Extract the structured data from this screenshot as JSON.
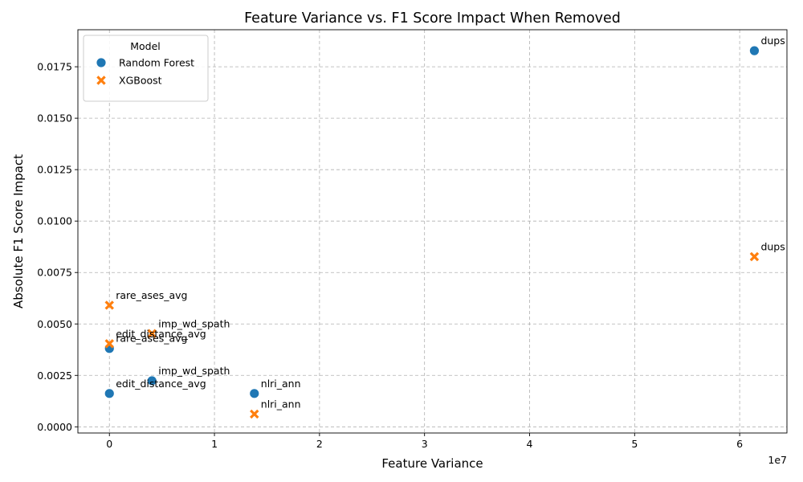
{
  "chart_data": {
    "type": "scatter",
    "title": "Feature Variance vs. F1 Score Impact When Removed",
    "xlabel": "Feature Variance",
    "ylabel": "Absolute F1 Score Impact",
    "x_offset_label": "1e7",
    "x_scale_factor": 10000000,
    "xlim": [
      -3000000,
      64500000
    ],
    "ylim": [
      -0.0003,
      0.0193
    ],
    "x_ticks": [
      0,
      10000000,
      20000000,
      30000000,
      40000000,
      50000000,
      60000000
    ],
    "x_tick_labels": [
      "0",
      "1",
      "2",
      "3",
      "4",
      "5",
      "6"
    ],
    "y_ticks": [
      0.0,
      0.0025,
      0.005,
      0.0075,
      0.01,
      0.0125,
      0.015,
      0.0175
    ],
    "y_tick_labels": [
      "0.0000",
      "0.0025",
      "0.0050",
      "0.0075",
      "0.0100",
      "0.0125",
      "0.0150",
      "0.0175"
    ],
    "grid": true,
    "legend": {
      "title": "Model",
      "placement": "top-left"
    },
    "series": [
      {
        "name": "Random Forest",
        "marker": "circle",
        "color": "#1f77b4",
        "points": [
          {
            "label": "dups",
            "x": 61400000,
            "y": 0.01828
          },
          {
            "label": "rare_ases_avg",
            "x": 0,
            "y": 0.00381
          },
          {
            "label": "imp_wd_spath",
            "x": 4050000,
            "y": 0.00224
          },
          {
            "label": "edit_distance_avg",
            "x": 0,
            "y": 0.00162
          },
          {
            "label": "nlri_ann",
            "x": 13800000,
            "y": 0.00162
          }
        ]
      },
      {
        "name": "XGBoost",
        "marker": "x",
        "color": "#ff7f0e",
        "points": [
          {
            "label": "dups",
            "x": 61400000,
            "y": 0.00827
          },
          {
            "label": "rare_ases_avg",
            "x": 0,
            "y": 0.00591
          },
          {
            "label": "imp_wd_spath",
            "x": 4050000,
            "y": 0.00453
          },
          {
            "label": "edit_distance_avg",
            "x": 0,
            "y": 0.00404
          },
          {
            "label": "nlri_ann",
            "x": 13800000,
            "y": 0.00062
          }
        ]
      }
    ]
  }
}
